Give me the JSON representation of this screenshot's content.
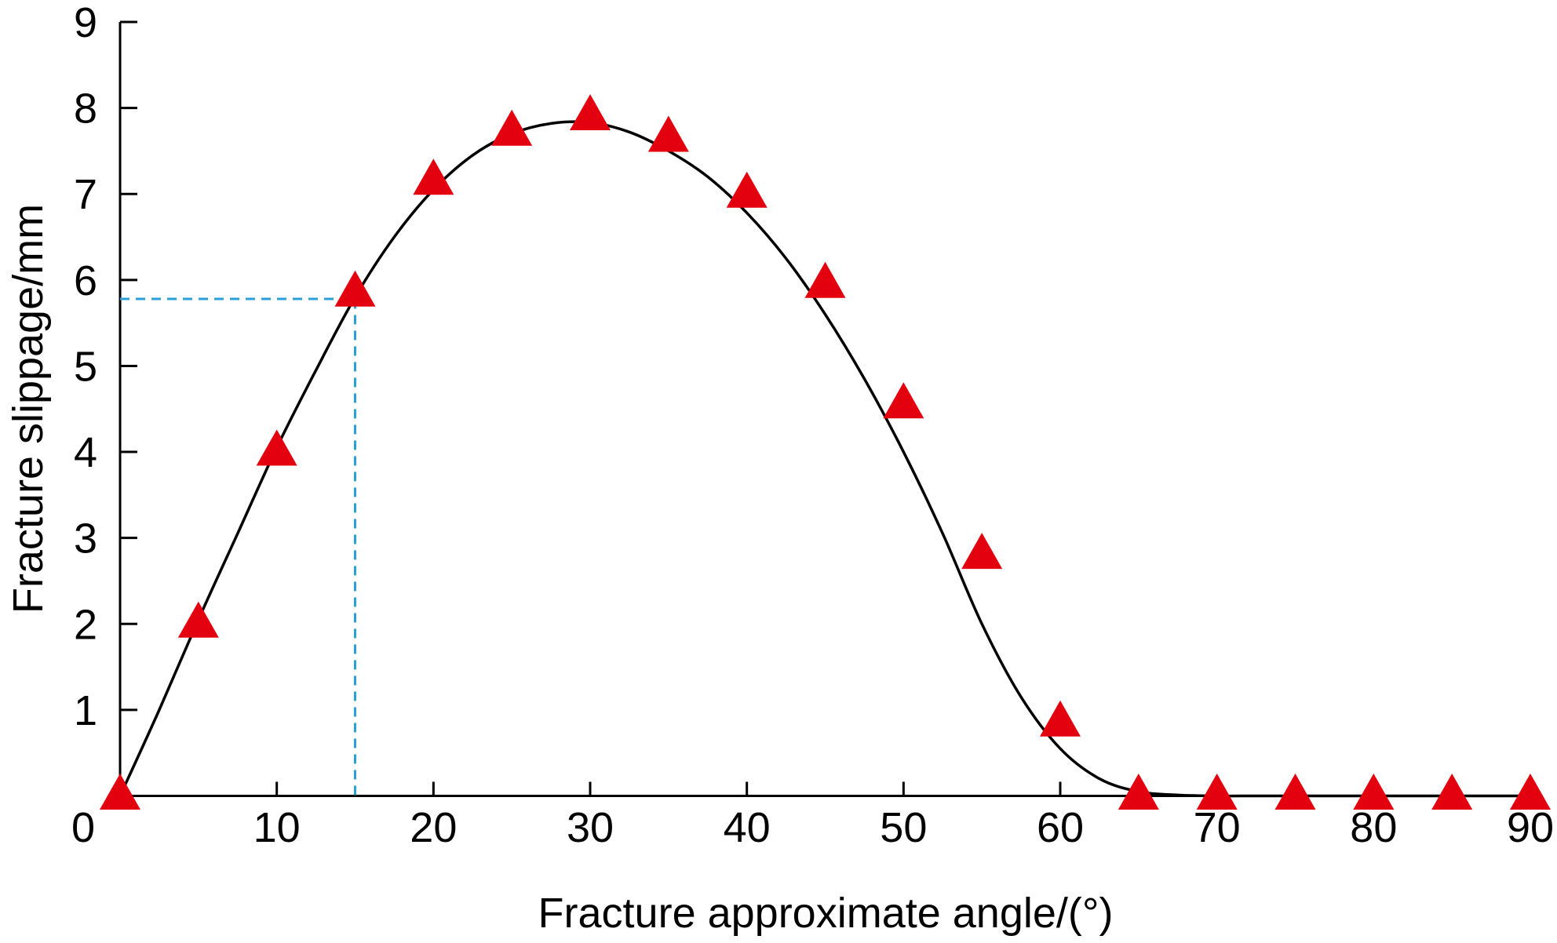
{
  "chart_data": {
    "type": "scatter",
    "title": "",
    "xlabel": "Fracture approximate angle/(°)",
    "ylabel": "Fracture slippage/mm",
    "xlim": [
      0,
      90
    ],
    "ylim": [
      0,
      9
    ],
    "x_ticks": [
      "0",
      "10",
      "20",
      "30",
      "40",
      "50",
      "60",
      "70",
      "80",
      "90"
    ],
    "y_ticks": [
      "1",
      "2",
      "3",
      "4",
      "5",
      "6",
      "7",
      "8",
      "9"
    ],
    "grid": false,
    "legend": "none",
    "series": [
      {
        "kind": "markers",
        "marker": "triangle",
        "color": "#e3000f",
        "x": [
          0,
          5,
          10,
          15,
          20,
          25,
          30,
          35,
          40,
          45,
          50,
          55,
          60,
          65,
          70,
          75,
          80,
          85,
          90
        ],
        "y": [
          0.0,
          2.0,
          4.0,
          5.85,
          7.15,
          7.72,
          7.9,
          7.65,
          7.0,
          5.95,
          4.55,
          2.8,
          0.85,
          0.0,
          0.0,
          0.0,
          0.0,
          0.0,
          0.0
        ]
      },
      {
        "kind": "line",
        "color": "#000000",
        "x": [
          0,
          2.5,
          5,
          7.5,
          10,
          12.5,
          15,
          17.5,
          20,
          22.5,
          25,
          27.5,
          30,
          32.5,
          35,
          37.5,
          40,
          42.5,
          45,
          47.5,
          50,
          52.5,
          55,
          57.5,
          60,
          62.5,
          65,
          67.5,
          70,
          72.5,
          75,
          80,
          85,
          90
        ],
        "y": [
          0.0,
          1.0,
          2.05,
          3.05,
          4.05,
          4.95,
          5.8,
          6.5,
          7.05,
          7.45,
          7.7,
          7.82,
          7.83,
          7.72,
          7.5,
          7.2,
          6.78,
          6.25,
          5.6,
          4.85,
          4.0,
          3.05,
          2.0,
          1.15,
          0.55,
          0.2,
          0.05,
          0.01,
          0.0,
          0.0,
          0.0,
          0.0,
          0.0,
          0.0
        ]
      }
    ],
    "annotations": [
      {
        "kind": "dashed-guide",
        "color": "#2a9fd8",
        "x": 15,
        "y": 5.78
      }
    ]
  }
}
